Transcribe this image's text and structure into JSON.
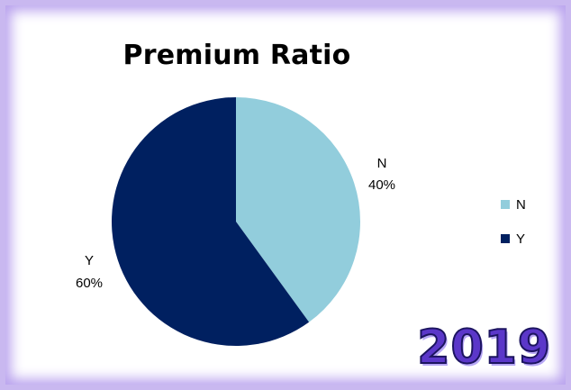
{
  "chart_data": {
    "type": "pie",
    "title": "Premium Ratio",
    "slices": [
      {
        "label": "N",
        "value": 40,
        "value_label": "40%",
        "color": "#92cddc"
      },
      {
        "label": "Y",
        "value": 60,
        "value_label": "60%",
        "color": "#002060"
      }
    ],
    "legend": {
      "placement": "right",
      "entries": [
        "N",
        "Y"
      ]
    },
    "start_angle_deg": 0,
    "direction": "clockwise"
  },
  "badge": {
    "year": "2019",
    "color": "#5b37c9"
  },
  "frame": {
    "border_color": "#c9b8f0"
  }
}
